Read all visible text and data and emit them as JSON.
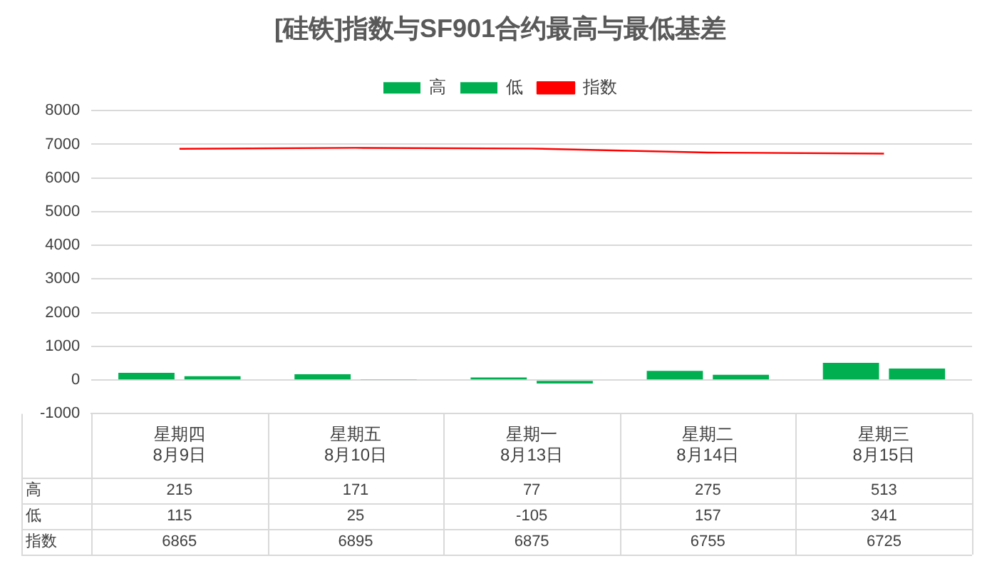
{
  "chart_data": {
    "type": "bar",
    "title": "[硅铁]指数与SF901合约最高与最低基差",
    "categories": [
      "星期四\n8月9日",
      "星期五\n8月10日",
      "星期一\n8月13日",
      "星期二\n8月14日",
      "星期三\n8月15日"
    ],
    "series": [
      {
        "name": "高",
        "color": "#00b050",
        "values": [
          215,
          171,
          77,
          275,
          513
        ]
      },
      {
        "name": "低",
        "color": "#00b050",
        "values": [
          115,
          25,
          -105,
          157,
          341
        ]
      },
      {
        "name": "指数",
        "type": "line",
        "color": "#ff0000",
        "values": [
          6865,
          6895,
          6875,
          6755,
          6725
        ]
      }
    ],
    "ylim": [
      -1000,
      8000
    ],
    "yticks": [
      -1000,
      0,
      1000,
      2000,
      3000,
      4000,
      5000,
      6000,
      7000,
      8000
    ],
    "grid": "y",
    "legend": "top",
    "data_labels": true
  }
}
